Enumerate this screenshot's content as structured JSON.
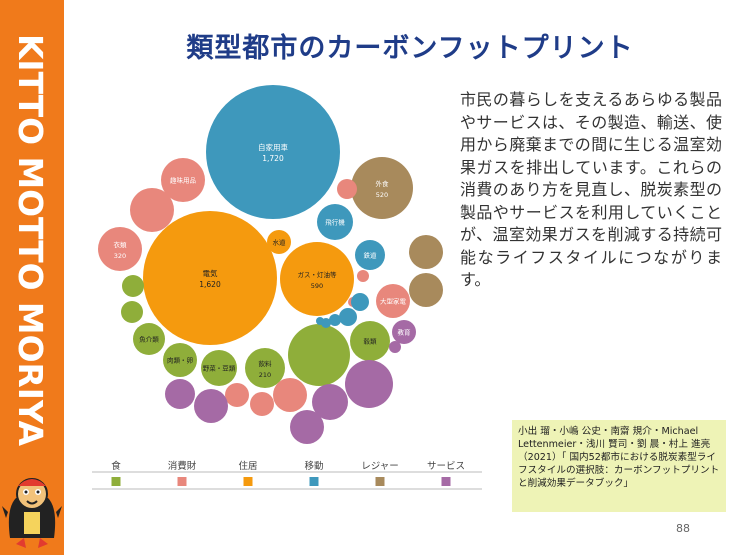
{
  "slide": {
    "title": "類型都市のカーボンフットプリント",
    "brand": "KITTO MOTTO MORIYA",
    "description": "市民の暮らしを支えるあらゆる製品やサービスは、その製造、輸送、使用から廃棄までの間に生じる温室効果ガスを排出しています。これらの消費のあり方を見直し、脱炭素型の製品やサービスを利用していくことが、温室効果ガスを削減する持続可能なライフスタイルにつながります。",
    "citation": "小出 瑠・小嶋 公史・南齋 規介・Michael Lettenmeier・浅川 賢司・劉 晨・村上 進亮（2021）「 国内52都市における脱炭素型ライフスタイルの選択肢：カーボンフットプリントと削減効果データブック」",
    "page_number": "88"
  },
  "colors": {
    "sidebar": "#f07a1b",
    "title": "#1f3c88",
    "citation_bg": "#eef3b6"
  },
  "chart_data": {
    "type": "bubble",
    "categories": [
      {
        "name": "食",
        "color": "#8fae3a"
      },
      {
        "name": "消費財",
        "color": "#e8877c"
      },
      {
        "name": "住居",
        "color": "#f59a0e"
      },
      {
        "name": "移動",
        "color": "#3e98bc"
      },
      {
        "name": "レジャー",
        "color": "#a88a5c"
      },
      {
        "name": "サービス",
        "color": "#a56aa5"
      }
    ],
    "bubbles": [
      {
        "label": "自家用車",
        "value": "1,720",
        "category": "移動"
      },
      {
        "label": "電気",
        "value": "1,620",
        "category": "住居"
      },
      {
        "label": "ガス・灯油等",
        "value": "590",
        "category": "住居"
      },
      {
        "label": "外食",
        "value": "520",
        "category": "レジャー"
      },
      {
        "label": "衣類",
        "value": "320",
        "category": "消費財"
      },
      {
        "label": "飲料",
        "value": "210",
        "category": "食"
      },
      {
        "label": "趣味用品",
        "value": "",
        "category": "消費財"
      },
      {
        "label": "水道",
        "value": "",
        "category": "住居"
      },
      {
        "label": "飛行機",
        "value": "",
        "category": "移動"
      },
      {
        "label": "鉄道",
        "value": "",
        "category": "移動"
      },
      {
        "label": "大型家電",
        "value": "",
        "category": "消費財"
      },
      {
        "label": "教育",
        "value": "",
        "category": "サービス"
      },
      {
        "label": "穀類",
        "value": "",
        "category": "食"
      },
      {
        "label": "魚介類",
        "value": "",
        "category": "食"
      },
      {
        "label": "肉類・卵",
        "value": "",
        "category": "食"
      },
      {
        "label": "野菜・豆類",
        "value": "",
        "category": "食"
      },
      {
        "label": "",
        "value": "",
        "category": "食"
      },
      {
        "label": "",
        "value": "",
        "category": "食"
      },
      {
        "label": "",
        "value": "",
        "category": "食"
      },
      {
        "label": "",
        "value": "",
        "category": "消費財"
      },
      {
        "label": "",
        "value": "",
        "category": "消費財"
      },
      {
        "label": "",
        "value": "",
        "category": "消費財"
      },
      {
        "label": "",
        "value": "",
        "category": "消費財"
      },
      {
        "label": "",
        "value": "",
        "category": "消費財"
      },
      {
        "label": "",
        "value": "",
        "category": "消費財"
      },
      {
        "label": "",
        "value": "",
        "category": "消費財"
      },
      {
        "label": "",
        "value": "",
        "category": "移動"
      },
      {
        "label": "",
        "value": "",
        "category": "移動"
      },
      {
        "label": "",
        "value": "",
        "category": "移動"
      },
      {
        "label": "",
        "value": "",
        "category": "移動"
      },
      {
        "label": "",
        "value": "",
        "category": "移動"
      },
      {
        "label": "",
        "value": "",
        "category": "レジャー"
      },
      {
        "label": "",
        "value": "",
        "category": "レジャー"
      },
      {
        "label": "",
        "value": "",
        "category": "サービス"
      },
      {
        "label": "",
        "value": "",
        "category": "サービス"
      },
      {
        "label": "",
        "value": "",
        "category": "サービス"
      },
      {
        "label": "",
        "value": "",
        "category": "サービス"
      },
      {
        "label": "",
        "value": "",
        "category": "サービス"
      },
      {
        "label": "",
        "value": "",
        "category": "サービス"
      }
    ]
  }
}
